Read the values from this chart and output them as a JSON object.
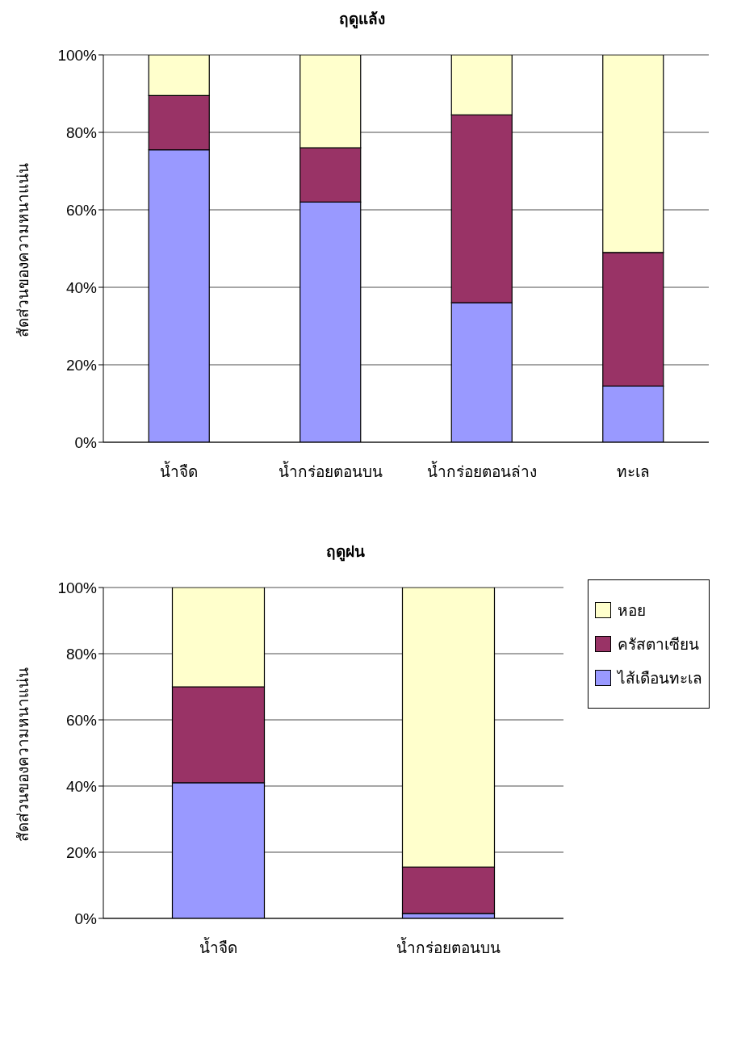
{
  "chart_data": [
    {
      "type": "bar",
      "title": "ฤดูแล้ง",
      "ylabel": "สัดส่วนของความหนาแน่น",
      "categories": [
        "น้ำจืด",
        "น้ำกร่อยตอนบน",
        "น้ำกร่อยตอนล่าง",
        "ทะเล"
      ],
      "stacked": true,
      "grid": "y",
      "legend": false,
      "ylim": [
        0,
        100
      ],
      "yticks": [
        {
          "value": 0,
          "label": "0%"
        },
        {
          "value": 20,
          "label": "20%"
        },
        {
          "value": 40,
          "label": "40%"
        },
        {
          "value": 60,
          "label": "60%"
        },
        {
          "value": 80,
          "label": "80%"
        },
        {
          "value": 100,
          "label": "100%"
        }
      ],
      "series": [
        {
          "color": "#9999ff",
          "values": [
            75.5,
            62,
            36,
            14.5
          ]
        },
        {
          "color": "#993366",
          "values": [
            14,
            14,
            48.5,
            34.5
          ]
        },
        {
          "color": "#ffffcc",
          "values": [
            10.5,
            24,
            15.5,
            51
          ]
        }
      ]
    },
    {
      "type": "bar",
      "title": "ฤดูฝน",
      "ylabel": "สัดส่วนของความหนาแน่น",
      "categories": [
        "น้ำจืด",
        "น้ำกร่อยตอนบน"
      ],
      "stacked": true,
      "grid": "y",
      "legend": "right",
      "ylim": [
        0,
        100
      ],
      "yticks": [
        {
          "value": 0,
          "label": "0%"
        },
        {
          "value": 20,
          "label": "20%"
        },
        {
          "value": 40,
          "label": "40%"
        },
        {
          "value": 60,
          "label": "60%"
        },
        {
          "value": 80,
          "label": "80%"
        },
        {
          "value": 100,
          "label": "100%"
        }
      ],
      "series": [
        {
          "name": "ไส้เดือนทะเล",
          "color": "#9999ff",
          "values": [
            41,
            1.5
          ]
        },
        {
          "name": "ครัสตาเซียน",
          "color": "#993366",
          "values": [
            29,
            14
          ]
        },
        {
          "name": "หอย",
          "color": "#ffffcc",
          "values": [
            30,
            84.5
          ]
        }
      ]
    }
  ]
}
